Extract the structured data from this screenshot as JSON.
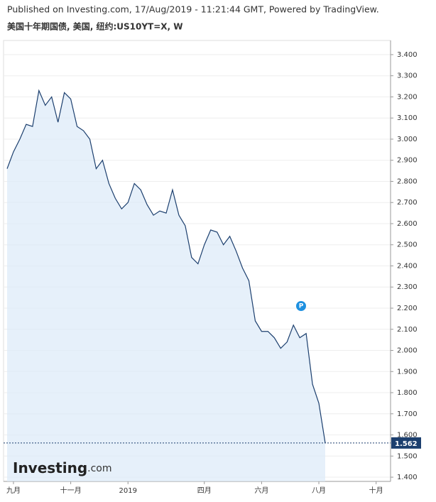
{
  "chart_data": {
    "type": "area",
    "header": "Published on Investing.com, 17/Aug/2019 - 11:21:44 GMT, Powered by TradingView.",
    "title": "美国十年期国债, 美国, 纽约:US10YT=X, W",
    "categories": [
      null,
      "九月",
      null,
      null,
      null,
      null,
      null,
      null,
      null,
      null,
      "十一月",
      null,
      null,
      null,
      null,
      null,
      null,
      null,
      null,
      "2019",
      null,
      null,
      null,
      null,
      null,
      null,
      null,
      null,
      null,
      null,
      null,
      "四月",
      null,
      null,
      null,
      null,
      null,
      null,
      null,
      null,
      "六月",
      null,
      null,
      null,
      null,
      null,
      null,
      null,
      null,
      "八月",
      null,
      null,
      null,
      null,
      null,
      null,
      null,
      null,
      "十月",
      null,
      null
    ],
    "series": [
      {
        "name": "US10YT=X",
        "color": "#1c3f6e",
        "fill": "#dbe9f8",
        "values": [
          2.86,
          2.94,
          3.0,
          3.07,
          3.06,
          3.23,
          3.16,
          3.2,
          3.08,
          3.22,
          3.19,
          3.06,
          3.04,
          3.0,
          2.86,
          2.9,
          2.79,
          2.72,
          2.67,
          2.7,
          2.79,
          2.76,
          2.69,
          2.64,
          2.66,
          2.65,
          2.76,
          2.64,
          2.59,
          2.44,
          2.41,
          2.5,
          2.57,
          2.56,
          2.5,
          2.54,
          2.47,
          2.39,
          2.33,
          2.14,
          2.09,
          2.09,
          2.06,
          2.01,
          2.04,
          2.12,
          2.06,
          2.08,
          1.84,
          1.75,
          1.562,
          null,
          null,
          null,
          null,
          null,
          null,
          null,
          null,
          null,
          null
        ]
      }
    ],
    "ylim": [
      1.38,
      3.467
    ],
    "yticks": [
      {
        "value": 1.4,
        "label": "1.400"
      },
      {
        "value": 1.5,
        "label": "1.500"
      },
      {
        "value": 1.6,
        "label": "1.600"
      },
      {
        "value": 1.7,
        "label": "1.700"
      },
      {
        "value": 1.8,
        "label": "1.800"
      },
      {
        "value": 1.9,
        "label": "1.900"
      },
      {
        "value": 2.0,
        "label": "2.000"
      },
      {
        "value": 2.1,
        "label": "2.100"
      },
      {
        "value": 2.2,
        "label": "2.200"
      },
      {
        "value": 2.3,
        "label": "2.300"
      },
      {
        "value": 2.4,
        "label": "2.400"
      },
      {
        "value": 2.5,
        "label": "2.500"
      },
      {
        "value": 2.6,
        "label": "2.600"
      },
      {
        "value": 2.7,
        "label": "2.700"
      },
      {
        "value": 2.8,
        "label": "2.800"
      },
      {
        "value": 2.9,
        "label": "2.900"
      },
      {
        "value": 3.0,
        "label": "3.000"
      },
      {
        "value": 3.1,
        "label": "3.100"
      },
      {
        "value": 3.2,
        "label": "3.200"
      },
      {
        "value": 3.3,
        "label": "3.300"
      },
      {
        "value": 3.4,
        "label": "3.400"
      }
    ],
    "grid": true,
    "annotation": "P",
    "logo": [
      "Investing",
      ".com"
    ]
  }
}
